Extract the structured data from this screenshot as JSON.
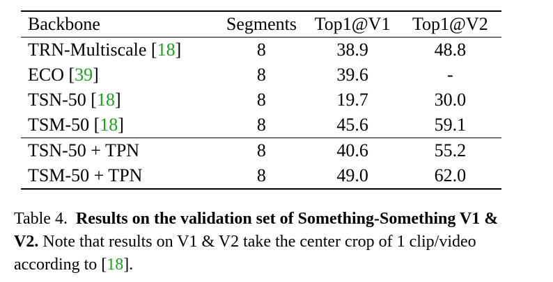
{
  "table": {
    "headers": [
      "Backbone",
      "Segments",
      "Top1@V1",
      "Top1@V2"
    ],
    "rows": [
      {
        "backbone": "TRN-Multiscale",
        "cite": "18",
        "segments": "8",
        "v1": "38.9",
        "v2": "48.8"
      },
      {
        "backbone": "ECO",
        "cite": "39",
        "segments": "8",
        "v1": "39.6",
        "v2": "-"
      },
      {
        "backbone": "TSN-50",
        "cite": "18",
        "segments": "8",
        "v1": "19.7",
        "v2": "30.0"
      },
      {
        "backbone": "TSM-50",
        "cite": "18",
        "segments": "8",
        "v1": "45.6",
        "v2": "59.1"
      },
      {
        "backbone": "TSN-50 + TPN",
        "cite": "",
        "segments": "8",
        "v1": "40.6",
        "v2": "55.2"
      },
      {
        "backbone": "TSM-50 + TPN",
        "cite": "",
        "segments": "8",
        "v1": "49.0",
        "v2": "62.0"
      }
    ]
  },
  "caption": {
    "label": "Table 4.",
    "title": "Results on the validation set of Something-Something V1 & V2.",
    "text": "Note that results on V1 & V2 take the center crop of 1 clip/video according to",
    "cite": "18",
    "end": "."
  }
}
